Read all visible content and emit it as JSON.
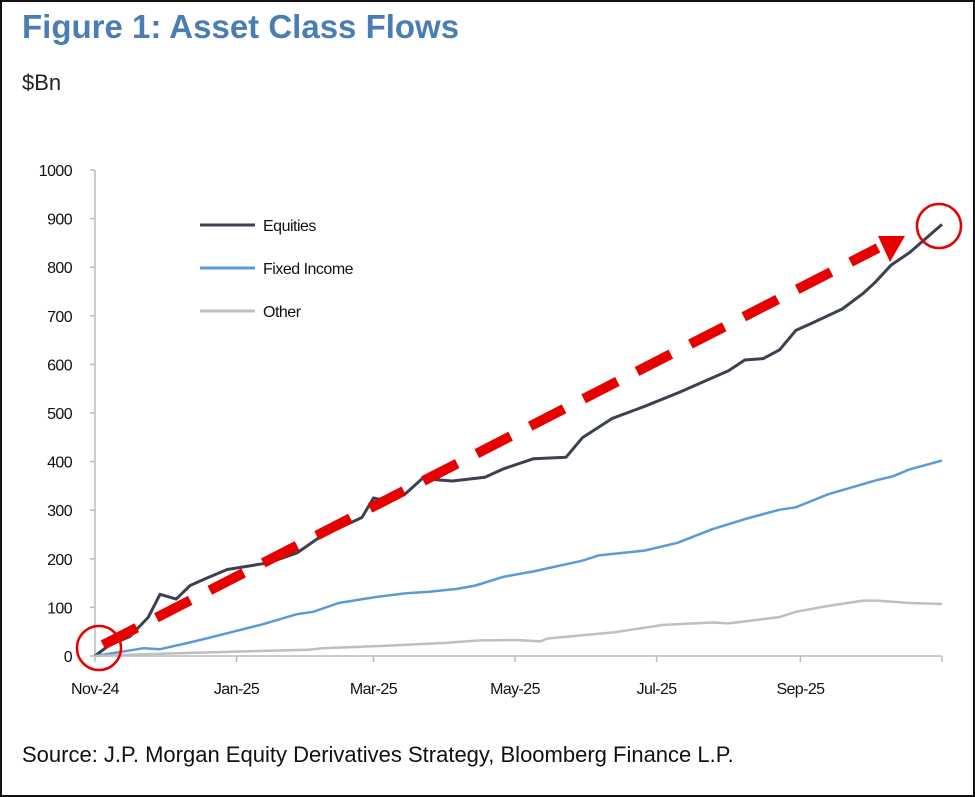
{
  "chart_data": {
    "type": "line",
    "title": "Figure 1: Asset Class Flows",
    "ylabel": "$Bn",
    "xlabel": "",
    "source": "Source: J.P. Morgan Equity Derivatives Strategy, Bloomberg Finance L.P.",
    "ylim": [
      0,
      1000
    ],
    "xlim": [
      "2024-11-01",
      "2025-11-01"
    ],
    "yticks": [
      "0",
      "100",
      "200",
      "300",
      "400",
      "500",
      "600",
      "700",
      "800",
      "900",
      "1000"
    ],
    "xticks": [
      {
        "date": "2024-11-01",
        "label": "Nov-24"
      },
      {
        "date": "2025-01-01",
        "label": "Jan-25"
      },
      {
        "date": "2025-03-01",
        "label": "Mar-25"
      },
      {
        "date": "2025-05-01",
        "label": "May-25"
      },
      {
        "date": "2025-07-01",
        "label": "Jul-25"
      },
      {
        "date": "2025-09-01",
        "label": "Sep-25"
      },
      {
        "date": "2025-11-01",
        "label": ""
      }
    ],
    "grid": false,
    "legend_position": "top-left",
    "series": [
      {
        "name": "Equities",
        "color": "#3a4150",
        "points": [
          [
            "2024-11-01",
            0
          ],
          [
            "2024-11-07",
            22
          ],
          [
            "2024-11-16",
            40
          ],
          [
            "2024-11-24",
            80
          ],
          [
            "2024-11-29",
            127
          ],
          [
            "2024-12-06",
            117
          ],
          [
            "2024-12-12",
            145
          ],
          [
            "2024-12-19",
            160
          ],
          [
            "2024-12-28",
            178
          ],
          [
            "2025-01-06",
            185
          ],
          [
            "2025-01-15",
            192
          ],
          [
            "2025-01-27",
            212
          ],
          [
            "2025-02-06",
            245
          ],
          [
            "2025-02-15",
            265
          ],
          [
            "2025-02-24",
            285
          ],
          [
            "2025-03-01",
            325
          ],
          [
            "2025-03-06",
            320
          ],
          [
            "2025-03-15",
            335
          ],
          [
            "2025-03-22",
            365
          ],
          [
            "2025-04-04",
            360
          ],
          [
            "2025-04-18",
            368
          ],
          [
            "2025-04-26",
            385
          ],
          [
            "2025-05-09",
            406
          ],
          [
            "2025-05-23",
            409
          ],
          [
            "2025-05-30",
            449
          ],
          [
            "2025-06-12",
            489
          ],
          [
            "2025-06-26",
            514
          ],
          [
            "2025-07-11",
            543
          ],
          [
            "2025-08-01",
            587
          ],
          [
            "2025-08-08",
            609
          ],
          [
            "2025-08-16",
            612
          ],
          [
            "2025-08-23",
            630
          ],
          [
            "2025-08-30",
            670
          ],
          [
            "2025-09-06",
            685
          ],
          [
            "2025-09-19",
            714
          ],
          [
            "2025-09-28",
            746
          ],
          [
            "2025-10-03",
            768
          ],
          [
            "2025-10-10",
            804
          ],
          [
            "2025-10-18",
            830
          ],
          [
            "2025-11-01",
            888
          ]
        ]
      },
      {
        "name": "Fixed Income",
        "color": "#5b9bd5",
        "points": [
          [
            "2024-11-01",
            0
          ],
          [
            "2024-11-22",
            16
          ],
          [
            "2024-11-29",
            14
          ],
          [
            "2024-12-13",
            29
          ],
          [
            "2024-12-28",
            47
          ],
          [
            "2025-01-12",
            65
          ],
          [
            "2025-01-27",
            86
          ],
          [
            "2025-02-03",
            91
          ],
          [
            "2025-02-14",
            109
          ],
          [
            "2025-02-23",
            116
          ],
          [
            "2025-03-03",
            122
          ],
          [
            "2025-03-15",
            129
          ],
          [
            "2025-03-25",
            132
          ],
          [
            "2025-04-06",
            138
          ],
          [
            "2025-04-14",
            145
          ],
          [
            "2025-04-26",
            163
          ],
          [
            "2025-05-09",
            174
          ],
          [
            "2025-05-30",
            196
          ],
          [
            "2025-06-06",
            207
          ],
          [
            "2025-06-26",
            217
          ],
          [
            "2025-07-10",
            233
          ],
          [
            "2025-07-25",
            261
          ],
          [
            "2025-08-09",
            283
          ],
          [
            "2025-08-23",
            301
          ],
          [
            "2025-08-30",
            306
          ],
          [
            "2025-09-13",
            333
          ],
          [
            "2025-10-04",
            362
          ],
          [
            "2025-10-11",
            370
          ],
          [
            "2025-10-18",
            384
          ],
          [
            "2025-11-01",
            402
          ]
        ]
      },
      {
        "name": "Other",
        "color": "#bfbfbf",
        "points": [
          [
            "2024-11-01",
            0
          ],
          [
            "2024-12-01",
            5
          ],
          [
            "2025-01-01",
            9
          ],
          [
            "2025-02-01",
            13
          ],
          [
            "2025-02-07",
            16
          ],
          [
            "2025-03-01",
            20
          ],
          [
            "2025-04-01",
            27
          ],
          [
            "2025-04-16",
            32
          ],
          [
            "2025-05-01",
            33
          ],
          [
            "2025-05-12",
            30
          ],
          [
            "2025-05-15",
            36
          ],
          [
            "2025-06-13",
            49
          ],
          [
            "2025-07-04",
            64
          ],
          [
            "2025-07-25",
            69
          ],
          [
            "2025-08-01",
            67
          ],
          [
            "2025-08-23",
            80
          ],
          [
            "2025-08-30",
            91
          ],
          [
            "2025-09-13",
            103
          ],
          [
            "2025-09-28",
            114
          ],
          [
            "2025-10-04",
            114
          ],
          [
            "2025-10-18",
            109
          ],
          [
            "2025-11-01",
            107
          ]
        ]
      }
    ],
    "annotations": {
      "color": "#e60000",
      "items": [
        "start-circle",
        "trend-arrow-dashed",
        "end-circle"
      ]
    }
  }
}
